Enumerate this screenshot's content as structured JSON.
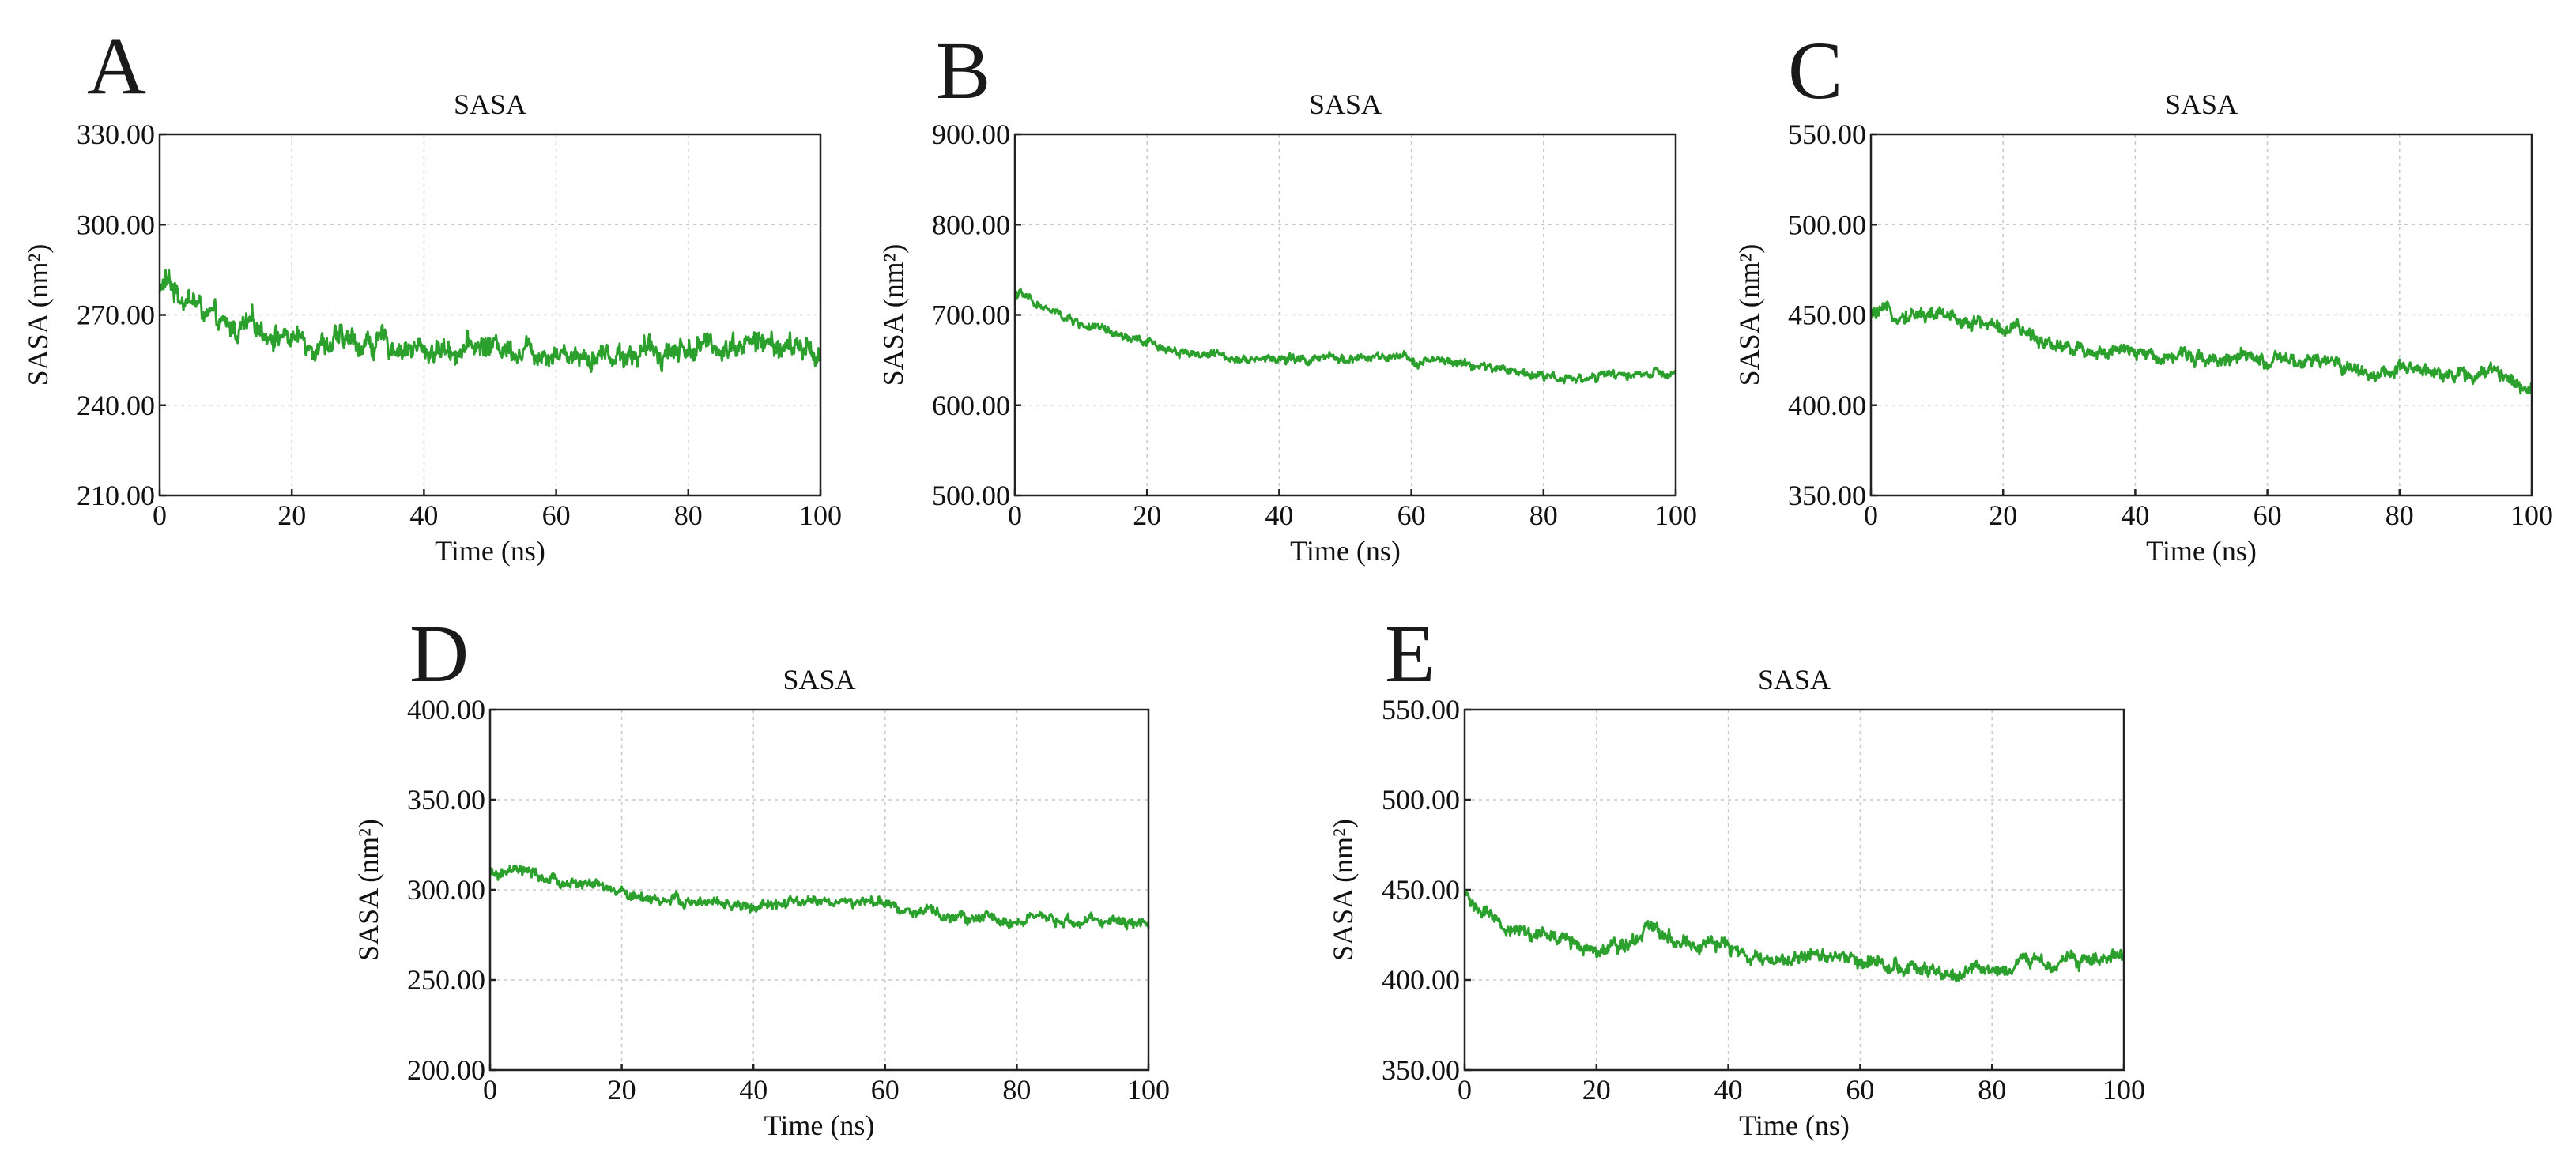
{
  "chart_data": [
    {
      "panel": "A",
      "type": "line",
      "title": "SASA",
      "xlabel": "Time (ns)",
      "ylabel": "SASA (nm²)",
      "xlim": [
        0,
        100
      ],
      "ylim": [
        210,
        330
      ],
      "xticks": [
        "0",
        "20",
        "40",
        "60",
        "80",
        "100"
      ],
      "yticks": [
        "210.00",
        "240.00",
        "270.00",
        "300.00",
        "330.00"
      ],
      "grid": true,
      "series": [
        {
          "name": "SASA",
          "color": "#2ca02c",
          "x": [
            0,
            1,
            3,
            5,
            8,
            10,
            15,
            20,
            25,
            30,
            35,
            40,
            45,
            50,
            55,
            60,
            65,
            70,
            75,
            80,
            85,
            90,
            95,
            100
          ],
          "y": [
            278,
            281,
            277,
            275,
            268,
            265,
            266,
            262,
            261,
            261,
            260,
            258,
            259,
            260,
            259,
            258,
            257,
            257,
            258,
            259,
            260,
            261,
            259,
            258
          ],
          "noise": 4
        }
      ]
    },
    {
      "panel": "B",
      "type": "line",
      "title": "SASA",
      "xlabel": "Time (ns)",
      "ylabel": "SASA (nm²)",
      "xlim": [
        0,
        100
      ],
      "ylim": [
        500,
        900
      ],
      "xticks": [
        "0",
        "20",
        "40",
        "60",
        "80",
        "100"
      ],
      "yticks": [
        "500.00",
        "600.00",
        "700.00",
        "800.00",
        "900.00"
      ],
      "grid": true,
      "series": [
        {
          "name": "SASA",
          "color": "#2ca02c",
          "x": [
            0,
            2,
            5,
            10,
            15,
            20,
            25,
            30,
            35,
            40,
            45,
            50,
            55,
            60,
            65,
            70,
            75,
            80,
            85,
            90,
            95,
            100
          ],
          "y": [
            725,
            718,
            705,
            690,
            678,
            668,
            660,
            655,
            653,
            651,
            650,
            652,
            652,
            650,
            648,
            643,
            638,
            633,
            630,
            632,
            635,
            632
          ],
          "noise": 5
        }
      ]
    },
    {
      "panel": "C",
      "type": "line",
      "title": "SASA",
      "xlabel": "Time (ns)",
      "ylabel": "SASA (nm²)",
      "xlim": [
        0,
        100
      ],
      "ylim": [
        350,
        550
      ],
      "xticks": [
        "0",
        "20",
        "40",
        "60",
        "80",
        "100"
      ],
      "yticks": [
        "350.00",
        "400.00",
        "450.00",
        "500.00",
        "550.00"
      ],
      "grid": true,
      "series": [
        {
          "name": "SASA",
          "color": "#2ca02c",
          "x": [
            0,
            5,
            10,
            15,
            20,
            25,
            30,
            35,
            40,
            45,
            50,
            55,
            60,
            65,
            70,
            75,
            80,
            85,
            90,
            95,
            100
          ],
          "y": [
            450,
            451,
            450,
            447,
            443,
            438,
            432,
            430,
            428,
            428,
            427,
            426,
            424,
            423,
            424,
            418,
            418,
            420,
            416,
            418,
            410
          ],
          "noise": 4
        }
      ]
    },
    {
      "panel": "D",
      "type": "line",
      "title": "SASA",
      "xlabel": "Time (ns)",
      "ylabel": "SASA (nm²)",
      "xlim": [
        0,
        100
      ],
      "ylim": [
        200,
        400
      ],
      "xticks": [
        "0",
        "20",
        "40",
        "60",
        "80",
        "100"
      ],
      "yticks": [
        "200.00",
        "250.00",
        "300.00",
        "350.00",
        "400.00"
      ],
      "grid": true,
      "series": [
        {
          "name": "SASA",
          "color": "#2ca02c",
          "x": [
            0,
            5,
            10,
            15,
            20,
            25,
            30,
            35,
            40,
            45,
            50,
            55,
            60,
            65,
            70,
            75,
            80,
            85,
            90,
            95,
            100
          ],
          "y": [
            308,
            310,
            304,
            303,
            298,
            295,
            293,
            292,
            290,
            292,
            294,
            293,
            292,
            288,
            285,
            284,
            283,
            283,
            282,
            283,
            281
          ],
          "noise": 3
        }
      ]
    },
    {
      "panel": "E",
      "type": "line",
      "title": "SASA",
      "xlabel": "Time (ns)",
      "ylabel": "SASA (nm²)",
      "xlim": [
        0,
        100
      ],
      "ylim": [
        350,
        550
      ],
      "xticks": [
        "0",
        "20",
        "40",
        "60",
        "80",
        "100"
      ],
      "yticks": [
        "350.00",
        "400.00",
        "450.00",
        "500.00",
        "550.00"
      ],
      "grid": true,
      "series": [
        {
          "name": "SASA",
          "color": "#2ca02c",
          "x": [
            0,
            2,
            5,
            10,
            15,
            20,
            25,
            28,
            32,
            35,
            40,
            45,
            50,
            55,
            60,
            65,
            70,
            73,
            76,
            80,
            85,
            90,
            95,
            100
          ],
          "y": [
            448,
            440,
            430,
            426,
            422,
            418,
            422,
            430,
            424,
            420,
            418,
            410,
            412,
            414,
            412,
            408,
            405,
            400,
            404,
            406,
            410,
            410,
            412,
            413
          ],
          "noise": 4
        }
      ]
    }
  ]
}
